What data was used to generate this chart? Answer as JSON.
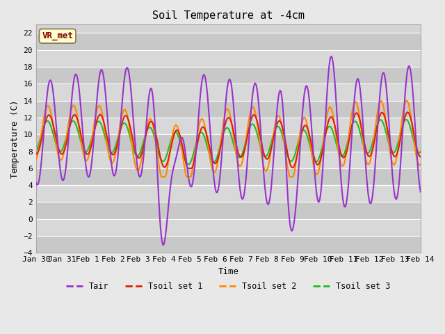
{
  "title": "Soil Temperature at -4cm",
  "xlabel": "Time",
  "ylabel": "Temperature (C)",
  "ylim": [
    -4,
    23
  ],
  "yticks": [
    -4,
    -2,
    0,
    2,
    4,
    6,
    8,
    10,
    12,
    14,
    16,
    18,
    20,
    22
  ],
  "xlim_start": 0,
  "xlim_end": 15,
  "xtick_labels": [
    "Jan 30",
    "Jan 31",
    "Feb 1",
    "Feb 2",
    "Feb 3",
    "Feb 4",
    "Feb 5",
    "Feb 6",
    "Feb 7",
    "Feb 8",
    "Feb 9",
    "Feb 10",
    "Feb 11",
    "Feb 12",
    "Feb 13",
    "Feb 14"
  ],
  "background_color": "#e8e8e8",
  "plot_bg_color": "#d4d4d4",
  "grid_color": "#ffffff",
  "annotation_text": "VR_met",
  "annotation_box_color": "#ffffcc",
  "annotation_border_color": "#8b7355",
  "annotation_text_color": "#880000",
  "colors": {
    "Tair": "#9933cc",
    "Tsoil_set1": "#dd2200",
    "Tsoil_set2": "#ff8800",
    "Tsoil_set3": "#22bb22"
  },
  "legend_labels": [
    "Tair",
    "Tsoil set 1",
    "Tsoil set 2",
    "Tsoil set 3"
  ],
  "line_width": 1.5,
  "title_fontsize": 11,
  "axis_fontsize": 9,
  "tick_fontsize": 8
}
